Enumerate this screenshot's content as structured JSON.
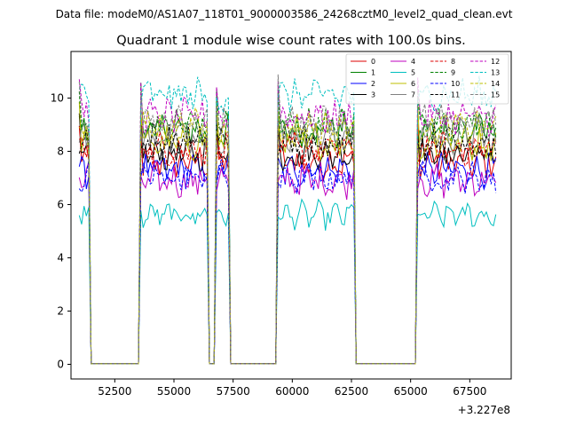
{
  "chart_data": {
    "type": "line",
    "suptitle": "Data file: modeM0/AS1A07_118T01_9000003586_24268cztM0_level2_quad_clean.evt",
    "title": "Quadrant 1 module wise count rates with 100.0s bins.",
    "xlabel": "",
    "ylabel": "",
    "x_offset_label": "+3.227e8",
    "x_offset": 322700000,
    "xlim": [
      50650,
      69250
    ],
    "ylim": [
      -0.55,
      11.75
    ],
    "xticks": [
      52500,
      55000,
      57500,
      60000,
      62500,
      65000,
      67500
    ],
    "yticks": [
      0,
      2,
      4,
      6,
      8,
      10
    ],
    "legend_position": "top-right",
    "grid": false,
    "active_segments": [
      {
        "start": 51000,
        "end": 51400
      },
      {
        "start": 53600,
        "end": 56400
      },
      {
        "start": 56800,
        "end": 57300
      },
      {
        "start": 59400,
        "end": 62600
      },
      {
        "start": 65300,
        "end": 68600
      }
    ],
    "series": [
      {
        "name": "0",
        "color": "#dd0000",
        "dash": "solid",
        "mean": 7.6
      },
      {
        "name": "1",
        "color": "#008000",
        "dash": "solid",
        "mean": 8.8
      },
      {
        "name": "2",
        "color": "#0000ff",
        "dash": "solid",
        "mean": 7.3
      },
      {
        "name": "3",
        "color": "#000000",
        "dash": "solid",
        "mean": 7.9
      },
      {
        "name": "4",
        "color": "#bf00bf",
        "dash": "solid",
        "mean": 6.9
      },
      {
        "name": "5",
        "color": "#00bfbf",
        "dash": "solid",
        "mean": 5.6
      },
      {
        "name": "6",
        "color": "#bfbf00",
        "dash": "solid",
        "mean": 8.3
      },
      {
        "name": "7",
        "color": "#808080",
        "dash": "solid",
        "mean": 8.6
      },
      {
        "name": "8",
        "color": "#dd0000",
        "dash": "dashed",
        "mean": 8.1
      },
      {
        "name": "9",
        "color": "#008000",
        "dash": "dashed",
        "mean": 9.0
      },
      {
        "name": "10",
        "color": "#0000ff",
        "dash": "dashed",
        "mean": 7.0
      },
      {
        "name": "11",
        "color": "#000000",
        "dash": "dashed",
        "mean": 8.4
      },
      {
        "name": "12",
        "color": "#bf00bf",
        "dash": "dashed",
        "mean": 9.3
      },
      {
        "name": "13",
        "color": "#00bfbf",
        "dash": "dashed",
        "mean": 10.1
      },
      {
        "name": "14",
        "color": "#bfbf00",
        "dash": "dashed",
        "mean": 8.9
      },
      {
        "name": "15",
        "color": "#808080",
        "dash": "dashed",
        "mean": 9.1
      }
    ]
  }
}
